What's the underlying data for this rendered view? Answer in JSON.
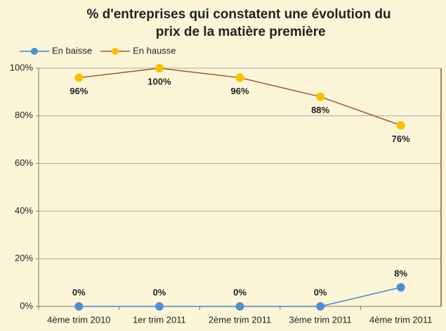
{
  "chart_data": {
    "type": "line",
    "title": "% d'entreprises qui constatent une évolution du prix de la matière première",
    "categories": [
      "4ème trim 2010",
      "1er trim 2011",
      "2ème trim 2011",
      "3ème trim 2011",
      "4ème trim 2011"
    ],
    "series": [
      {
        "name": "En baisse",
        "color": "#4f8fd0",
        "line_color": "#4a86c8",
        "values": [
          0,
          0,
          0,
          0,
          8
        ],
        "value_labels": [
          "0%",
          "0%",
          "0%",
          "0%",
          "8%"
        ]
      },
      {
        "name": "En hausse",
        "color": "#f7c100",
        "line_color": "#9b5a2a",
        "values": [
          96,
          100,
          96,
          88,
          76
        ],
        "value_labels": [
          "96%",
          "100%",
          "96%",
          "88%",
          "76%"
        ]
      }
    ],
    "ylim": [
      0,
      100
    ],
    "yticks": [
      {
        "value": 0,
        "label": "0%"
      },
      {
        "value": 20,
        "label": "20%"
      },
      {
        "value": 40,
        "label": "40%"
      },
      {
        "value": 60,
        "label": "60%"
      },
      {
        "value": 80,
        "label": "80%"
      },
      {
        "value": 100,
        "label": "100%"
      }
    ],
    "grid": true,
    "legend": "top-left"
  }
}
